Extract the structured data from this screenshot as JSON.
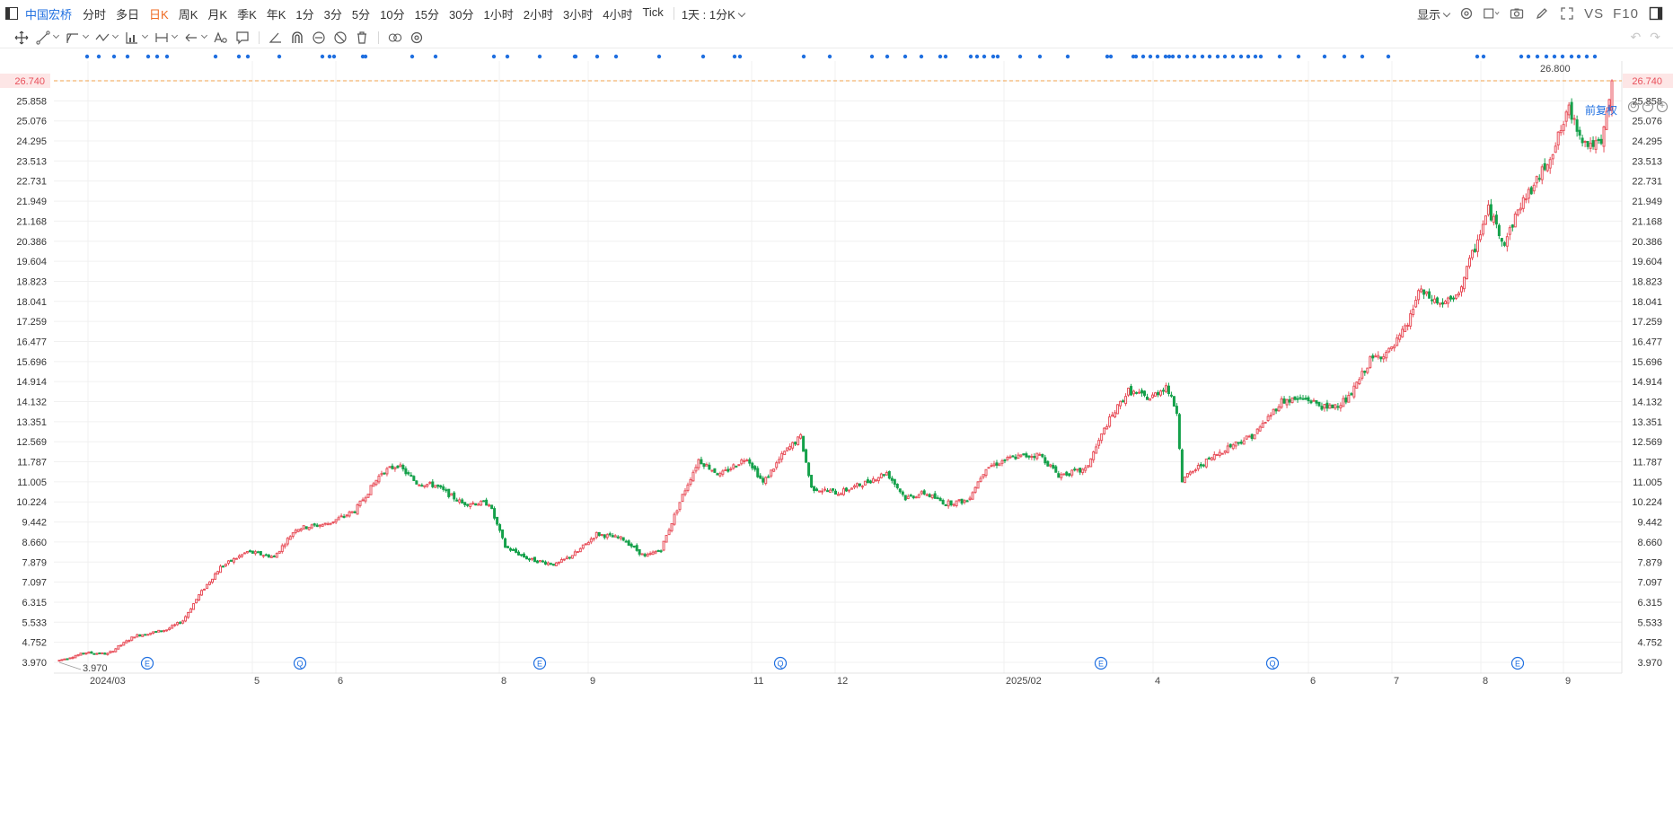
{
  "topbar": {
    "stock_name": "中国宏桥",
    "periods": [
      "分时",
      "多日",
      "日K",
      "周K",
      "月K",
      "季K",
      "年K",
      "1分",
      "3分",
      "5分",
      "10分",
      "15分",
      "30分",
      "1小时",
      "2小时",
      "3小时",
      "4小时",
      "Tick"
    ],
    "active_period": "日K",
    "interval_select": "1天 : 1分K",
    "display_label": "显示",
    "vs_label": "VS",
    "f10_label": "F10"
  },
  "price_adjust_label": "前复权",
  "colors": {
    "up": "#e8505b",
    "down": "#15a14b",
    "accent": "#1f6fe0",
    "highlight": "#ef6b23",
    "grid": "#f0f0f0"
  },
  "chart_data": {
    "type": "candlestick",
    "y_ticks": [
      "26.740",
      "25.858",
      "25.076",
      "24.295",
      "23.513",
      "22.731",
      "21.949",
      "21.168",
      "20.386",
      "19.604",
      "18.823",
      "18.041",
      "17.259",
      "16.477",
      "15.696",
      "14.914",
      "14.132",
      "13.351",
      "12.569",
      "11.787",
      "11.005",
      "10.224",
      "9.442",
      "8.660",
      "7.879",
      "7.097",
      "6.315",
      "5.533",
      "4.752",
      "3.970"
    ],
    "ylim": [
      3.97,
      26.74
    ],
    "x_labels": [
      "2024/03",
      "5",
      "6",
      "8",
      "9",
      "11",
      "12",
      "2025/02",
      "4",
      "6",
      "7",
      "8",
      "9"
    ],
    "current_price": "26.740",
    "max_label": "26.800",
    "min_label": "3.970",
    "event_markers": [
      "E",
      "Q",
      "E",
      "Q",
      "E",
      "Q",
      "E"
    ],
    "anchors": [
      [
        0,
        4.05
      ],
      [
        10,
        4.35
      ],
      [
        18,
        4.3
      ],
      [
        28,
        5.0
      ],
      [
        40,
        5.25
      ],
      [
        46,
        5.6
      ],
      [
        52,
        6.6
      ],
      [
        60,
        7.7
      ],
      [
        70,
        8.3
      ],
      [
        80,
        8.1
      ],
      [
        88,
        9.2
      ],
      [
        100,
        9.4
      ],
      [
        110,
        9.9
      ],
      [
        120,
        11.4
      ],
      [
        126,
        11.7
      ],
      [
        133,
        11.0
      ],
      [
        140,
        10.9
      ],
      [
        150,
        10.2
      ],
      [
        160,
        10.2
      ],
      [
        166,
        8.5
      ],
      [
        175,
        8.0
      ],
      [
        185,
        7.8
      ],
      [
        193,
        8.3
      ],
      [
        200,
        9.0
      ],
      [
        210,
        8.8
      ],
      [
        218,
        8.1
      ],
      [
        224,
        8.4
      ],
      [
        232,
        10.5
      ],
      [
        238,
        11.9
      ],
      [
        246,
        11.3
      ],
      [
        256,
        12.0
      ],
      [
        262,
        11.0
      ],
      [
        270,
        12.2
      ],
      [
        276,
        12.8
      ],
      [
        280,
        10.8
      ],
      [
        290,
        10.6
      ],
      [
        300,
        11.0
      ],
      [
        308,
        11.4
      ],
      [
        315,
        10.4
      ],
      [
        322,
        10.6
      ],
      [
        330,
        10.2
      ],
      [
        338,
        10.3
      ],
      [
        345,
        11.6
      ],
      [
        355,
        12.0
      ],
      [
        365,
        12.1
      ],
      [
        372,
        11.3
      ],
      [
        382,
        11.5
      ],
      [
        390,
        13.3
      ],
      [
        398,
        14.6
      ],
      [
        406,
        14.3
      ],
      [
        412,
        14.8
      ],
      [
        416,
        13.8
      ],
      [
        418,
        11.1
      ],
      [
        425,
        11.7
      ],
      [
        435,
        12.4
      ],
      [
        445,
        12.9
      ],
      [
        455,
        14.2
      ],
      [
        464,
        14.3
      ],
      [
        472,
        13.9
      ],
      [
        480,
        14.3
      ],
      [
        488,
        15.8
      ],
      [
        496,
        16.2
      ],
      [
        502,
        17.2
      ],
      [
        506,
        18.5
      ],
      [
        514,
        18.0
      ],
      [
        520,
        18.2
      ],
      [
        528,
        20.5
      ],
      [
        532,
        21.7
      ],
      [
        538,
        20.4
      ],
      [
        544,
        21.9
      ],
      [
        550,
        22.8
      ],
      [
        556,
        24.0
      ],
      [
        562,
        25.6
      ],
      [
        568,
        24.3
      ],
      [
        574,
        24.2
      ],
      [
        578,
        26.6
      ]
    ]
  }
}
